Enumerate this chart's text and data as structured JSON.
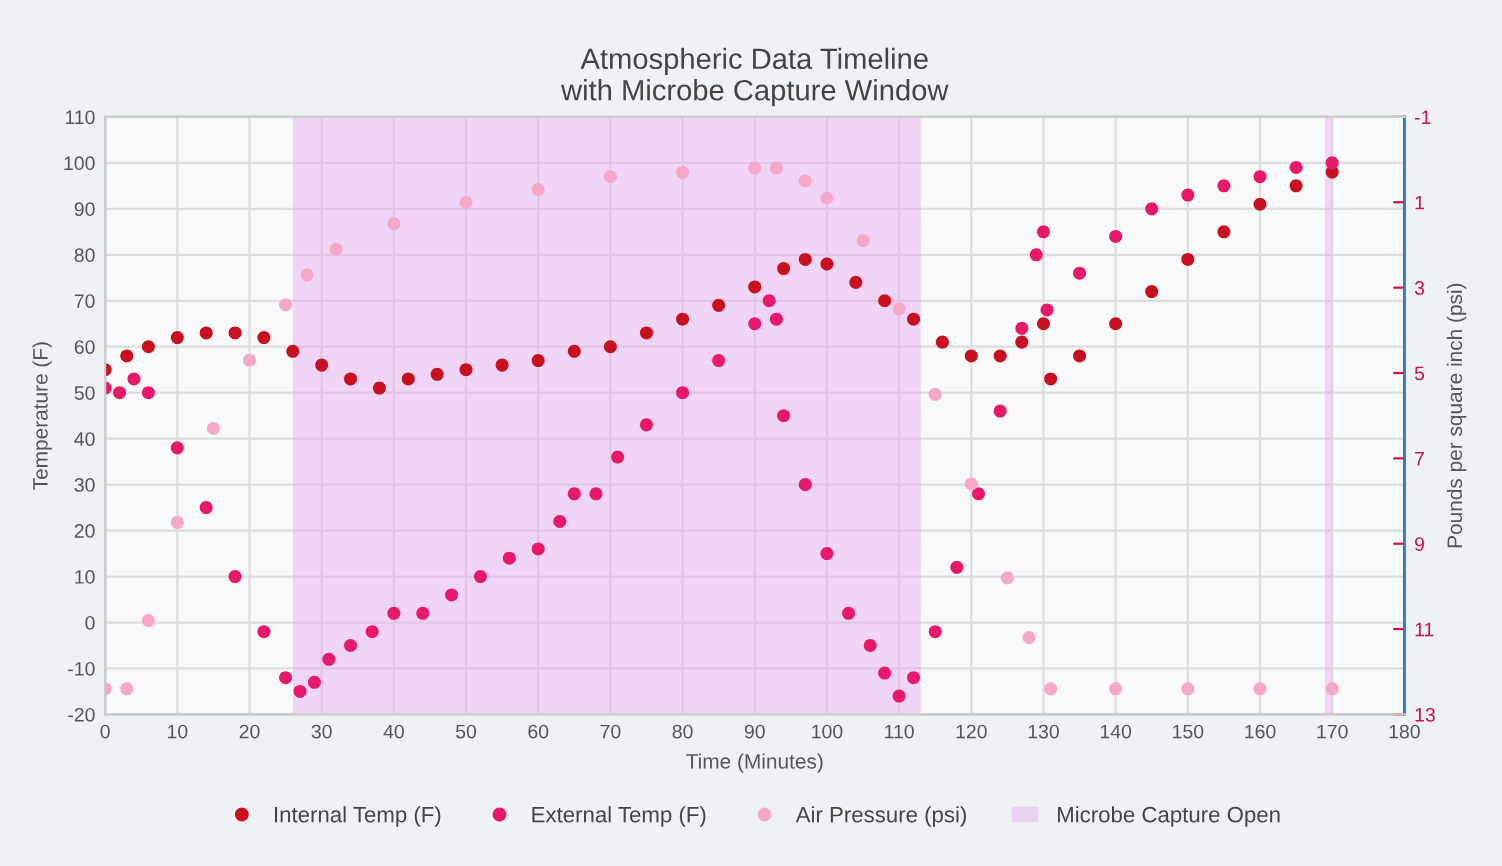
{
  "chart_data": {
    "type": "scatter",
    "title": "Atmospheric Data Timeline\nwith Microbe Capture Window",
    "xlabel": "Time (Minutes)",
    "ylabel": "Temperature (F)",
    "y2label": "Pounds per square inch (psi)",
    "xlim": [
      0,
      180
    ],
    "xticks": [
      0,
      10,
      20,
      30,
      40,
      50,
      60,
      70,
      80,
      90,
      100,
      110,
      120,
      130,
      140,
      150,
      160,
      170,
      180
    ],
    "ylim": [
      -20,
      110
    ],
    "yticks": [
      -20,
      -10,
      0,
      10,
      20,
      30,
      40,
      50,
      60,
      70,
      80,
      90,
      100,
      110
    ],
    "y2lim": [
      13,
      -1
    ],
    "y2ticks": [
      -1,
      1,
      3,
      5,
      7,
      9,
      11,
      13
    ],
    "grid": true,
    "legend": "bottom",
    "marker": "circle",
    "bands": [
      {
        "axis": "x",
        "from": 26,
        "to": 113,
        "label": "Microbe Capture Open",
        "color": "#e6a8f0"
      },
      {
        "axis": "x",
        "from": 169,
        "to": 170,
        "label": null,
        "color": "#e6a8f0"
      }
    ],
    "series": [
      {
        "name": "Internal Temp (F)",
        "color": "#c8101e",
        "x": [
          0,
          3,
          6,
          10,
          14,
          18,
          22,
          26,
          30,
          34,
          38,
          42,
          46,
          50,
          55,
          60,
          65,
          70,
          75,
          80,
          85,
          90,
          94,
          97,
          100,
          104,
          108,
          112,
          116,
          120,
          124,
          127,
          130,
          131,
          135,
          140,
          145,
          150,
          155,
          160,
          165,
          170
        ],
        "values": [
          55,
          58,
          60,
          62,
          63,
          63,
          62,
          59,
          56,
          53,
          51,
          53,
          54,
          55,
          56,
          57,
          59,
          60,
          63,
          66,
          69,
          73,
          77,
          79,
          78,
          74,
          70,
          66,
          61,
          58,
          58,
          61,
          65,
          53,
          58,
          65,
          72,
          79,
          85,
          91,
          95,
          98
        ]
      },
      {
        "name": "External Temp (F)",
        "color": "#e8186a",
        "x": [
          0,
          2,
          4,
          6,
          10,
          14,
          18,
          22,
          25,
          27,
          29,
          31,
          34,
          37,
          40,
          44,
          48,
          52,
          56,
          60,
          63,
          65,
          68,
          71,
          75,
          80,
          85,
          90,
          92,
          93,
          94,
          97,
          100,
          103,
          106,
          108,
          110,
          112,
          115,
          118,
          121,
          124,
          127,
          129,
          130,
          130.5,
          135,
          140,
          145,
          150,
          155,
          160,
          165,
          170
        ],
        "values": [
          51,
          50,
          53,
          50,
          38,
          25,
          10,
          -2,
          -12,
          -15,
          -13,
          -8,
          -5,
          -2,
          2,
          2,
          6,
          10,
          14,
          16,
          22,
          28,
          28,
          36,
          43,
          50,
          57,
          65,
          70,
          66,
          45,
          30,
          15,
          2,
          -5,
          -11,
          -16,
          -12,
          -2,
          12,
          28,
          46,
          64,
          80,
          85,
          68,
          76,
          84,
          90,
          93,
          95,
          97,
          99,
          100
        ]
      },
      {
        "name": "Air Pressure (psi)",
        "color": "#f7a8c8",
        "axis": "y2",
        "x": [
          0,
          3,
          6,
          10,
          15,
          20,
          25,
          28,
          32,
          40,
          50,
          60,
          70,
          80,
          90,
          93,
          97,
          100,
          105,
          110,
          115,
          120,
          125,
          128,
          131,
          140,
          150,
          160,
          170
        ],
        "values": [
          12.4,
          12.4,
          10.8,
          8.5,
          6.3,
          4.7,
          3.4,
          2.7,
          2.1,
          1.5,
          1.0,
          0.7,
          0.4,
          0.3,
          0.2,
          0.2,
          0.5,
          0.9,
          1.9,
          3.5,
          5.5,
          7.6,
          9.8,
          11.2,
          12.4,
          12.4,
          12.4,
          12.4,
          12.4
        ]
      }
    ]
  }
}
